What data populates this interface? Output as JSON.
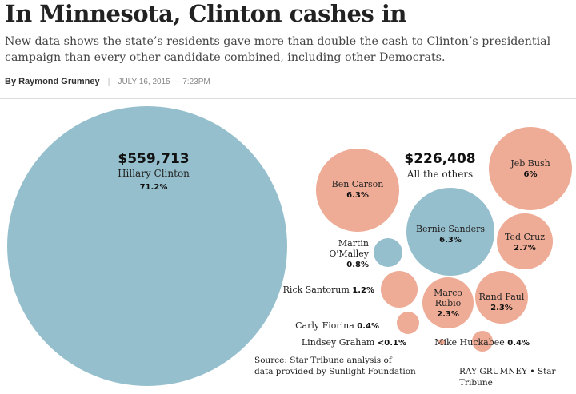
{
  "headline": "In Minnesota, Clinton cashes in",
  "subhead": "New data shows the state’s residents gave more than double the cash to Clinton’s presidential campaign than every other candidate combined, including other Democrats.",
  "byline": {
    "author": "By Raymond Grumney",
    "date": "JULY 16, 2015 — 7:23PM"
  },
  "colors": {
    "democrat": "#95bfcd",
    "republican": "#eeab95"
  },
  "chart_data": {
    "type": "bubble",
    "groups": [
      {
        "amount": "$559,713",
        "label": "Hillary Clinton",
        "share": "71.2%"
      },
      {
        "amount": "$226,408",
        "label": "All the others"
      }
    ],
    "candidates": [
      {
        "name": "Hillary Clinton",
        "share": 71.2,
        "share_label": "71.2%",
        "party": "democrat"
      },
      {
        "name": "Ben Carson",
        "share": 6.3,
        "share_label": "6.3%",
        "party": "republican"
      },
      {
        "name": "Jeb Bush",
        "share": 6,
        "share_label": "6%",
        "party": "republican"
      },
      {
        "name": "Bernie Sanders",
        "share": 6.3,
        "share_label": "6.3%",
        "party": "democrat"
      },
      {
        "name": "Ted Cruz",
        "share": 2.7,
        "share_label": "2.7%",
        "party": "republican"
      },
      {
        "name": "Martin O'Malley",
        "share": 0.8,
        "share_label": "0.8%",
        "party": "democrat"
      },
      {
        "name": "Rick Santorum",
        "share": 1.2,
        "share_label": "1.2%",
        "party": "republican"
      },
      {
        "name": "Marco Rubio",
        "share": 2.3,
        "share_label": "2.3%",
        "party": "republican"
      },
      {
        "name": "Rand Paul",
        "share": 2.3,
        "share_label": "2.3%",
        "party": "republican"
      },
      {
        "name": "Carly Fiorina",
        "share": 0.4,
        "share_label": "0.4%",
        "party": "republican"
      },
      {
        "name": "Lindsey Graham",
        "share": 0.1,
        "share_label": "<0.1%",
        "party": "republican"
      },
      {
        "name": "Mike Huckabee",
        "share": 0.4,
        "share_label": "0.4%",
        "party": "republican"
      }
    ]
  },
  "source": {
    "line1": "Source: Star Tribune analysis of",
    "line2": "data provided by Sunlight Foundation"
  },
  "credit": "RAY GRUMNEY • Star Tribune"
}
